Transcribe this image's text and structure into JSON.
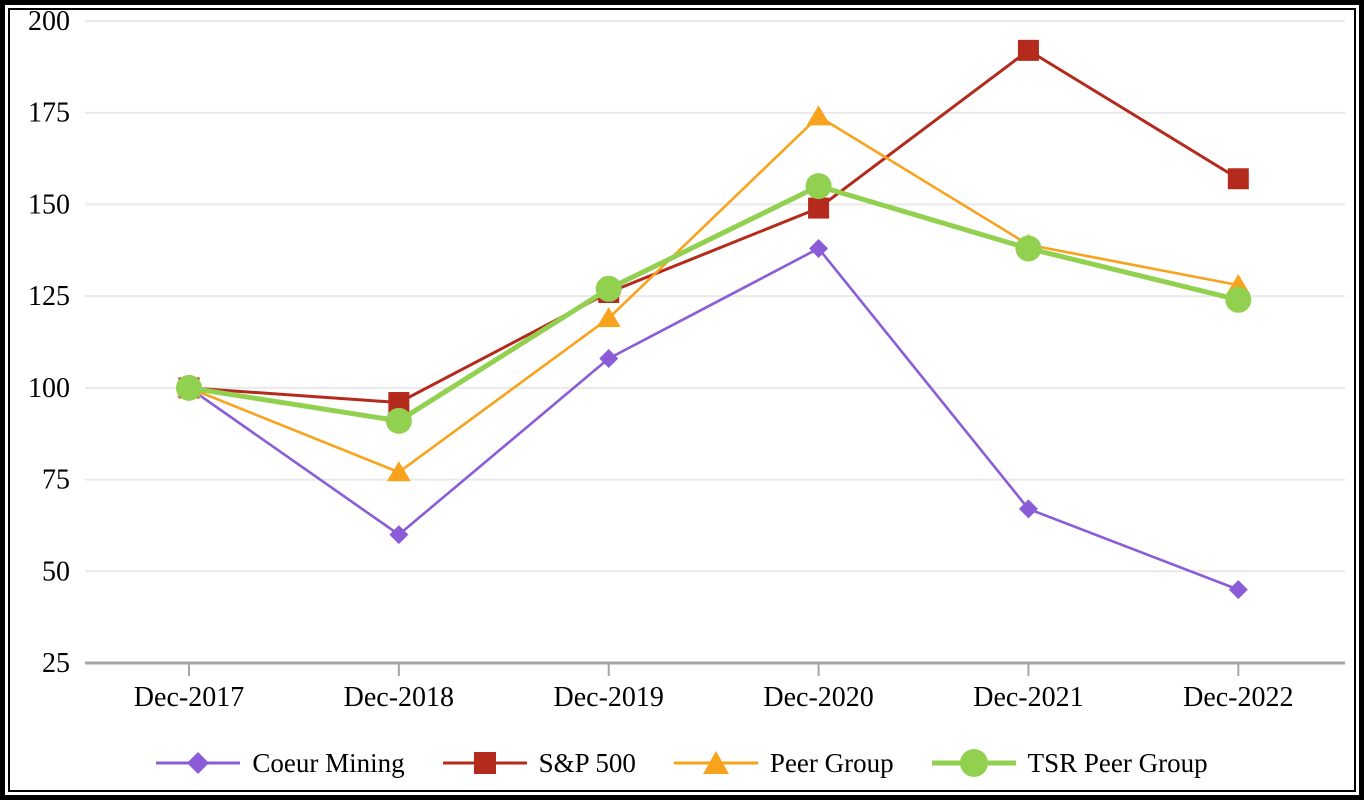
{
  "chart_data": {
    "type": "line",
    "title": "",
    "categories": [
      "Dec-2017",
      "Dec-2018",
      "Dec-2019",
      "Dec-2020",
      "Dec-2021",
      "Dec-2022"
    ],
    "series": [
      {
        "name": "Coeur Mining",
        "color": "#8A5CD8",
        "marker": "diamond",
        "line_width": 2.6,
        "values": [
          100,
          60,
          108,
          138,
          67,
          45
        ]
      },
      {
        "name": "S&P 500",
        "color": "#B42A1D",
        "marker": "square",
        "line_width": 3.0,
        "values": [
          100,
          96,
          126,
          149,
          192,
          157
        ]
      },
      {
        "name": "Peer Group",
        "color": "#F8A31D",
        "marker": "triangle",
        "line_width": 2.6,
        "values": [
          100,
          77,
          119,
          174,
          139,
          128
        ]
      },
      {
        "name": "TSR Peer Group",
        "color": "#92D050",
        "marker": "circle",
        "line_width": 5.0,
        "values": [
          100,
          91,
          127,
          155,
          138,
          124
        ]
      }
    ],
    "y_axis": {
      "min": 25,
      "max": 200,
      "step": 25,
      "ticks": [
        25,
        50,
        75,
        100,
        125,
        150,
        175,
        200
      ]
    },
    "x_axis": {
      "tick_labels": [
        "Dec-2017",
        "Dec-2018",
        "Dec-2019",
        "Dec-2020",
        "Dec-2021",
        "Dec-2022"
      ]
    },
    "grid": true,
    "legend_position": "bottom",
    "colors": {
      "background": "#FFFFFF",
      "gridline": "#E9E9E9",
      "axis": "#A6A6A6",
      "text": "#000000",
      "frame_border": "#000000"
    }
  }
}
